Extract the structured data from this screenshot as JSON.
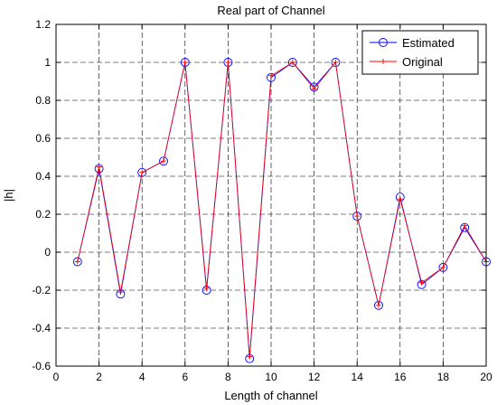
{
  "chart_data": {
    "type": "line",
    "title": "Real part of Channel",
    "xlabel": "Length of channel",
    "ylabel": "|h|",
    "xlim": [
      0,
      20
    ],
    "ylim": [
      -0.6,
      1.2
    ],
    "xticks": [
      0,
      2,
      4,
      6,
      8,
      10,
      12,
      14,
      16,
      18,
      20
    ],
    "yticks": [
      -0.6,
      -0.4,
      -0.2,
      0,
      0.2,
      0.4,
      0.6,
      0.8,
      1,
      1.2
    ],
    "grid": true,
    "legend_position": "top-right",
    "x": [
      1,
      2,
      3,
      4,
      5,
      6,
      7,
      8,
      9,
      10,
      11,
      12,
      13,
      14,
      15,
      16,
      17,
      18,
      19,
      20
    ],
    "series": [
      {
        "name": "Estimated",
        "color": "#0000ff",
        "marker": "circle",
        "values": [
          -0.05,
          0.44,
          -0.22,
          0.42,
          0.48,
          1.0,
          -0.2,
          1.0,
          -0.56,
          0.92,
          1.0,
          0.87,
          1.0,
          0.19,
          -0.28,
          0.29,
          -0.17,
          -0.08,
          0.13,
          -0.05
        ]
      },
      {
        "name": "Original",
        "color": "#ff0000",
        "marker": "plus",
        "values": [
          -0.05,
          0.45,
          -0.21,
          0.42,
          0.48,
          1.0,
          -0.19,
          1.0,
          -0.55,
          0.93,
          1.0,
          0.86,
          1.0,
          0.19,
          -0.28,
          0.28,
          -0.16,
          -0.08,
          0.14,
          -0.05
        ]
      }
    ]
  }
}
